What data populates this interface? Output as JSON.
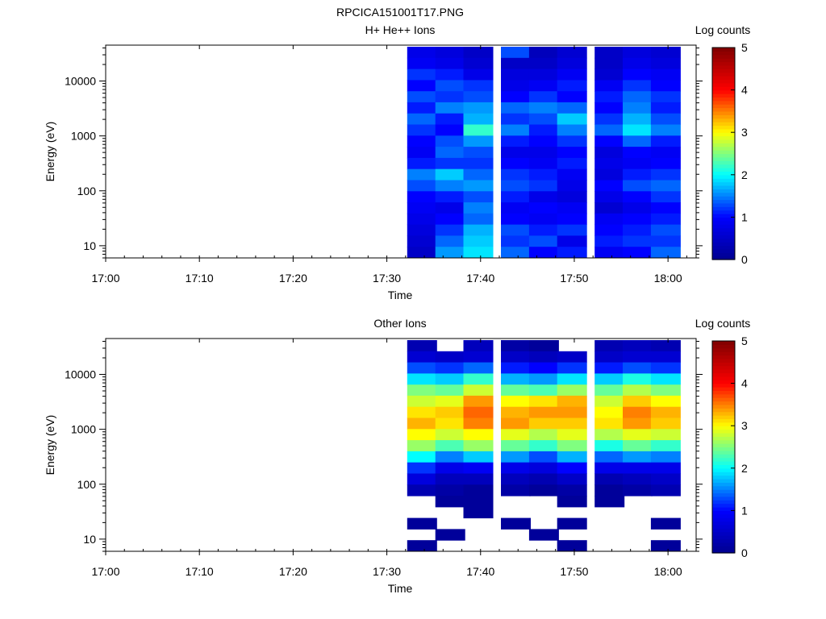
{
  "figure_title": "RPCICA151001T17.PNG",
  "colorbar_label": "Log counts",
  "colorbar_ticks": [
    "0",
    "1",
    "2",
    "3",
    "4",
    "5"
  ],
  "colormap": [
    "#00008f",
    "#0000ff",
    "#00ffff",
    "#ffff00",
    "#ff0000",
    "#800000"
  ],
  "chart_data": [
    {
      "type": "heatmap",
      "title": "H+ He++ Ions",
      "xlabel": "Time",
      "ylabel": "Energy (eV)",
      "x_tick_labels": [
        "17:00",
        "17:10",
        "17:20",
        "17:30",
        "17:40",
        "17:50",
        "18:00"
      ],
      "y_tick_labels": [
        "10",
        "100",
        "1000",
        "10000"
      ],
      "yscale": "log",
      "xlim": [
        "17:00",
        "18:03"
      ],
      "ylim": [
        6,
        45000
      ],
      "clim": [
        0,
        5
      ],
      "time_bins": [
        "17:32",
        "17:35",
        "17:38",
        "17:42",
        "17:45",
        "17:48",
        "17:52",
        "17:55",
        "17:58"
      ],
      "profile": [
        [
          0.8,
          0.9,
          1.2,
          1.0,
          1.3,
          1.1,
          1.4,
          1.2,
          1.0,
          0.9,
          1.1,
          1.5,
          1.3,
          1.0,
          0.9,
          0.8,
          0.7,
          0.6,
          0.5
        ],
        [
          0.7,
          0.8,
          1.1,
          1.3,
          1.2,
          1.5,
          1.1,
          1.0,
          1.3,
          1.4,
          1.2,
          1.8,
          1.5,
          1.1,
          0.8,
          1.0,
          1.2,
          1.4,
          1.6
        ],
        [
          0.5,
          0.6,
          0.8,
          1.2,
          1.3,
          1.6,
          1.7,
          2.2,
          1.6,
          1.3,
          1.2,
          1.4,
          1.6,
          1.3,
          1.5,
          1.4,
          1.7,
          1.8,
          1.9
        ],
        [
          1.3,
          0.5,
          0.7,
          0.8,
          1.0,
          1.4,
          1.2,
          1.5,
          1.1,
          0.8,
          1.0,
          1.2,
          1.3,
          1.1,
          0.9,
          1.0,
          1.3,
          1.2,
          1.4
        ],
        [
          0.4,
          0.5,
          0.7,
          0.9,
          1.2,
          1.5,
          1.3,
          1.1,
          1.0,
          0.8,
          0.9,
          1.1,
          1.2,
          0.8,
          1.0,
          0.9,
          1.1,
          1.3,
          1.0
        ],
        [
          0.6,
          0.7,
          0.9,
          1.1,
          1.0,
          1.4,
          1.8,
          1.5,
          1.2,
          1.0,
          1.1,
          0.9,
          0.8,
          0.7,
          0.9,
          1.0,
          1.2,
          0.8,
          1.1
        ],
        [
          0.5,
          0.5,
          0.6,
          0.9,
          1.1,
          1.0,
          1.2,
          1.4,
          1.0,
          0.7,
          0.8,
          0.7,
          1.0,
          0.8,
          0.6,
          0.9,
          1.0,
          1.1,
          0.9
        ],
        [
          0.7,
          0.8,
          1.0,
          1.2,
          1.4,
          1.5,
          1.7,
          1.9,
          1.4,
          1.0,
          0.9,
          1.1,
          1.3,
          1.0,
          0.8,
          1.0,
          1.1,
          1.2,
          1.0
        ],
        [
          0.6,
          0.7,
          0.9,
          1.0,
          1.2,
          1.1,
          1.3,
          1.5,
          1.1,
          0.9,
          1.0,
          1.2,
          1.4,
          1.2,
          1.0,
          1.1,
          1.3,
          1.2,
          1.4
        ]
      ]
    },
    {
      "type": "heatmap",
      "title": "Other Ions",
      "xlabel": "Time",
      "ylabel": "Energy (eV)",
      "x_tick_labels": [
        "17:00",
        "17:10",
        "17:20",
        "17:30",
        "17:40",
        "17:50",
        "18:00"
      ],
      "y_tick_labels": [
        "10",
        "100",
        "1000",
        "10000"
      ],
      "yscale": "log",
      "xlim": [
        "17:00",
        "18:03"
      ],
      "ylim": [
        6,
        45000
      ],
      "clim": [
        0,
        5
      ],
      "time_bins": [
        "17:32",
        "17:35",
        "17:38",
        "17:42",
        "17:45",
        "17:48",
        "17:52",
        "17:55",
        "17:58"
      ],
      "profile": [
        [
          0.3,
          0.6,
          1.3,
          1.9,
          2.5,
          2.8,
          3.1,
          3.3,
          3.0,
          2.6,
          2.0,
          1.2,
          0.7,
          0.3,
          0,
          0,
          0.1,
          0,
          0.1
        ],
        [
          0,
          0.5,
          1.2,
          1.8,
          2.4,
          2.9,
          3.2,
          3.1,
          2.8,
          2.3,
          1.5,
          0.8,
          0.4,
          0.2,
          0.1,
          0,
          0,
          0.1,
          0
        ],
        [
          0.4,
          0.6,
          1.4,
          2.2,
          2.8,
          3.4,
          3.6,
          3.5,
          3.0,
          2.6,
          1.8,
          0.9,
          0.4,
          0.1,
          0.1,
          0.1,
          0,
          0,
          0
        ],
        [
          0.2,
          0.5,
          1.1,
          1.7,
          2.4,
          3.0,
          3.3,
          3.4,
          2.9,
          2.4,
          1.6,
          0.8,
          0.4,
          0.2,
          0,
          0,
          0.1,
          0,
          0
        ],
        [
          0.1,
          0.4,
          1.0,
          1.6,
          2.3,
          3.1,
          3.4,
          3.2,
          2.7,
          2.2,
          1.3,
          0.7,
          0.3,
          0.1,
          0,
          0,
          0,
          0.1,
          0
        ],
        [
          0,
          0.5,
          1.2,
          1.9,
          2.6,
          3.3,
          3.4,
          3.2,
          2.9,
          2.5,
          1.7,
          1.0,
          0.5,
          0.2,
          0.1,
          0,
          0.1,
          0,
          0.1
        ],
        [
          0.3,
          0.5,
          1.1,
          1.8,
          2.4,
          2.8,
          3.0,
          3.1,
          2.7,
          2.1,
          1.4,
          0.8,
          0.3,
          0.1,
          0.1,
          0,
          0,
          0,
          0
        ],
        [
          0.4,
          0.6,
          1.3,
          2.1,
          2.7,
          3.2,
          3.5,
          3.4,
          2.9,
          2.4,
          1.6,
          0.8,
          0.4,
          0.2,
          0,
          0,
          0,
          0,
          0
        ],
        [
          0.3,
          0.6,
          1.2,
          1.9,
          2.5,
          3.0,
          3.3,
          3.2,
          2.8,
          2.2,
          1.5,
          0.8,
          0.5,
          0.3,
          0,
          0,
          0.1,
          0,
          0.1
        ]
      ]
    }
  ]
}
